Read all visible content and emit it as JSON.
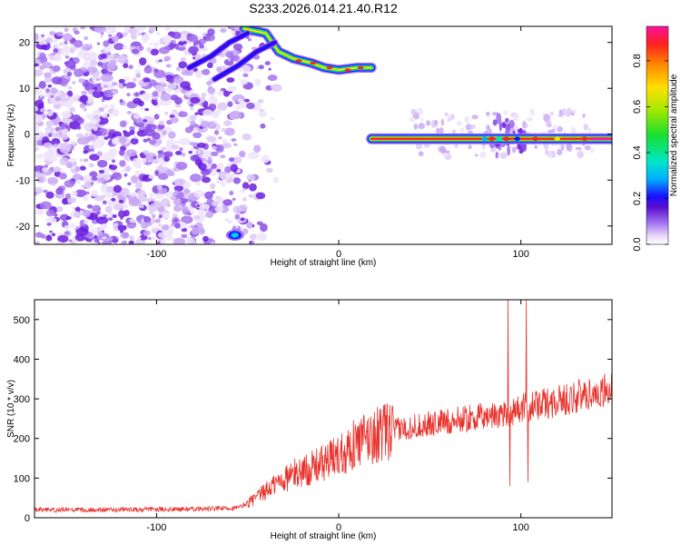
{
  "title": "S233.2026.014.21.40.R12",
  "colors": {
    "snr_line": "#e8322c",
    "colormap": [
      "#ffffff",
      "#e6d5f7",
      "#a070f0",
      "#5a0fd0",
      "#1a10ff",
      "#00b0ff",
      "#00e6c8",
      "#18e030",
      "#a8e800",
      "#ffe000",
      "#ff8c00",
      "#ff2020",
      "#ff10a0"
    ]
  },
  "chart_data": [
    {
      "type": "heatmap",
      "name": "spectrogram",
      "xlabel": "Height of straight line (km)",
      "ylabel": "Frequency (Hz)",
      "xlim": [
        -167,
        150
      ],
      "ylim": [
        -24,
        23.5
      ],
      "xticks": [
        {
          "value": -100,
          "label": "-100"
        },
        {
          "value": 0,
          "label": "0"
        },
        {
          "value": 100,
          "label": "100"
        }
      ],
      "yticks": [
        {
          "value": -20,
          "label": "-20"
        },
        {
          "value": -10,
          "label": "-10"
        },
        {
          "value": 0,
          "label": "0"
        },
        {
          "value": 10,
          "label": "10"
        },
        {
          "value": 20,
          "label": "20"
        }
      ],
      "colorbar": {
        "label": "Normalized spectral amplitude",
        "range": [
          0,
          0.95
        ],
        "ticks": [
          {
            "value": 0.0,
            "label": "0.0"
          },
          {
            "value": 0.2,
            "label": "0.2"
          },
          {
            "value": 0.4,
            "label": "0.4"
          },
          {
            "value": 0.6,
            "label": "0.6"
          },
          {
            "value": 0.8,
            "label": "0.8"
          }
        ]
      },
      "features": {
        "noise_region_km": [
          -167,
          -40
        ],
        "upper_track": [
          [
            -52,
            23
          ],
          [
            -40,
            22
          ],
          [
            -33,
            18
          ],
          [
            -25,
            16.5
          ],
          [
            -15,
            15.5
          ],
          [
            -8,
            14.5
          ],
          [
            0,
            14
          ],
          [
            10,
            14.5
          ],
          [
            18,
            14.5
          ]
        ],
        "rising_track_lower": [
          [
            -68,
            12
          ],
          [
            -55,
            15
          ],
          [
            -45,
            18
          ],
          [
            -35,
            20
          ]
        ],
        "rising_track_upper": [
          [
            -82,
            14.5
          ],
          [
            -70,
            17
          ],
          [
            -60,
            20
          ],
          [
            -50,
            22
          ]
        ],
        "low_blob": {
          "x": -57,
          "y": -22
        },
        "horizontal_line": {
          "x_start": 18,
          "x_end": 150,
          "y": -1
        },
        "disturbance_km": [
          90,
          100
        ]
      }
    },
    {
      "type": "line",
      "name": "snr",
      "xlabel": "Height of straight line (km)",
      "ylabel": "SNR (10 * v/v)",
      "xlim": [
        -167,
        150
      ],
      "ylim": [
        0,
        550
      ],
      "xticks": [
        {
          "value": -100,
          "label": "-100"
        },
        {
          "value": 0,
          "label": "0"
        },
        {
          "value": 100,
          "label": "100"
        }
      ],
      "yticks": [
        {
          "value": 0,
          "label": "0"
        },
        {
          "value": 100,
          "label": "100"
        },
        {
          "value": 200,
          "label": "200"
        },
        {
          "value": 300,
          "label": "300"
        },
        {
          "value": 400,
          "label": "400"
        },
        {
          "value": 500,
          "label": "500"
        }
      ],
      "x": [
        -167,
        -150,
        -125,
        -100,
        -75,
        -55,
        -45,
        -35,
        -25,
        -15,
        -5,
        5,
        15,
        25,
        40,
        55,
        70,
        85,
        95,
        100,
        105,
        115,
        130,
        150
      ],
      "y": [
        20,
        20,
        20,
        21,
        22,
        25,
        50,
        85,
        110,
        125,
        145,
        175,
        200,
        215,
        230,
        240,
        250,
        258,
        268,
        275,
        280,
        290,
        305,
        325
      ],
      "spikes": [
        {
          "x": 93,
          "y": 550
        },
        {
          "x": 94,
          "y": 80
        },
        {
          "x": 103,
          "y": 550
        },
        {
          "x": 104,
          "y": 90
        }
      ]
    }
  ]
}
